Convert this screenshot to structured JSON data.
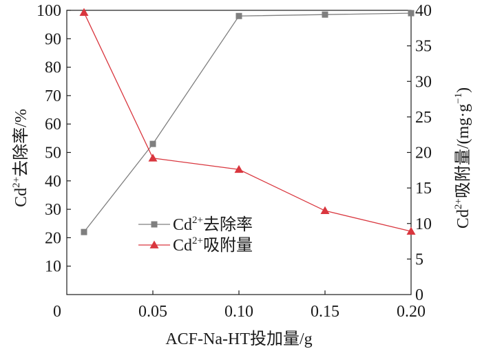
{
  "chart_data": {
    "type": "line",
    "x_ticks": [
      "0",
      "0.05",
      "0.10",
      "0.15",
      "0.20"
    ],
    "xlabel": "ACF-Na-HT投加量/g",
    "xlim": [
      0,
      0.2
    ],
    "ylim_left": [
      0,
      100
    ],
    "ylim_right": [
      0,
      40
    ],
    "y_left_ticks": [
      "10",
      "20",
      "30",
      "40",
      "50",
      "60",
      "70",
      "80",
      "90",
      "100"
    ],
    "y_right_ticks": [
      "0",
      "5",
      "10",
      "15",
      "20",
      "25",
      "30",
      "35",
      "40"
    ],
    "ylabel_left": {
      "base": "Cd",
      "sup": "2+",
      "rest": "去除率/%"
    },
    "ylabel_right": {
      "base": "Cd",
      "sup": "2+",
      "rest": "吸附量/(mg·g",
      "sup2": "−1",
      "close": ")"
    },
    "grid": false,
    "legend_position": "center-left",
    "series": [
      {
        "name_base": "Cd",
        "name_sup": "2+",
        "name_rest": "去除率",
        "axis": "left",
        "marker": "square",
        "color": "#7f7f7f",
        "x": [
          0.01,
          0.05,
          0.1,
          0.15,
          0.2
        ],
        "y": [
          22,
          53,
          98,
          98.5,
          99
        ]
      },
      {
        "name_base": "Cd",
        "name_sup": "2+",
        "name_rest": "吸附量",
        "axis": "right",
        "marker": "triangle",
        "color": "#d9363e",
        "x": [
          0.01,
          0.05,
          0.1,
          0.15,
          0.2
        ],
        "y": [
          39.7,
          19.2,
          17.6,
          11.8,
          8.9
        ]
      }
    ]
  }
}
